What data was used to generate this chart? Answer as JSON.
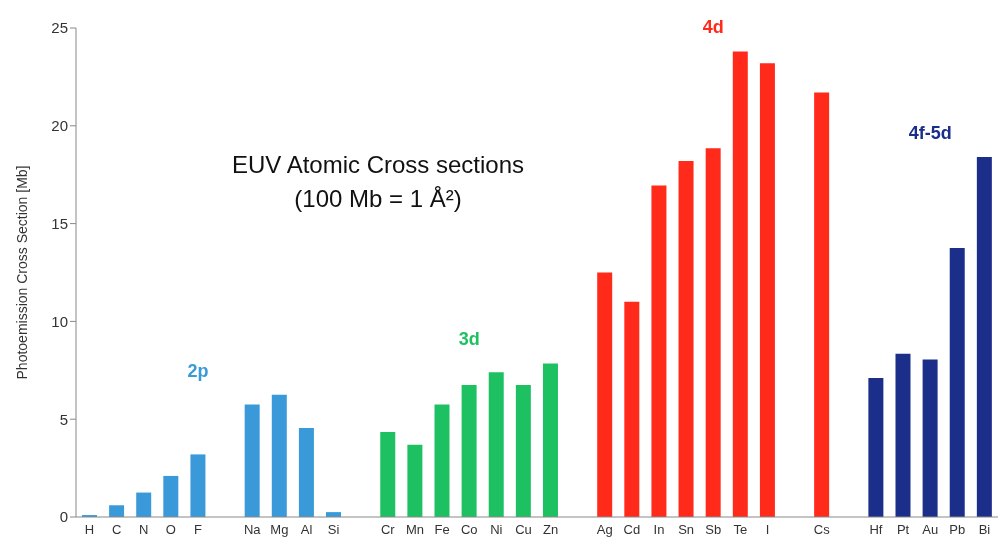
{
  "chart_data": {
    "type": "bar",
    "title": "EUV Atomic Cross sections",
    "subtitle": "(100 Mb = 1 Å²)",
    "ylabel": "Photoemission Cross  Section [Mb]",
    "categories": [
      "H",
      "C",
      "N",
      "O",
      "F",
      null,
      "Na",
      "Mg",
      "Al",
      "Si",
      null,
      "Cr",
      "Mn",
      "Fe",
      "Co",
      "Ni",
      "Cu",
      "Zn",
      null,
      "Ag",
      "Cd",
      "In",
      "Sn",
      "Sb",
      "Te",
      "I",
      null,
      "Cs",
      null,
      "Hf",
      "Pt",
      "Au",
      "Pb",
      "Bi"
    ],
    "stacked": true,
    "series": [
      {
        "name": "2p",
        "color": "#3a9ad9",
        "values": [
          0.1,
          0.6,
          1.25,
          2.1,
          3.2,
          null,
          5.75,
          6.25,
          4.55,
          0.25,
          null,
          null,
          null,
          null,
          null,
          null,
          null,
          null,
          null,
          null,
          null,
          null,
          null,
          null,
          null,
          null,
          null,
          null,
          null,
          null,
          null,
          null,
          null,
          null
        ]
      },
      {
        "name": "3d",
        "color": "#1ec162",
        "values": [
          null,
          null,
          null,
          null,
          null,
          null,
          null,
          null,
          null,
          null,
          null,
          4.35,
          3.7,
          5.75,
          6.75,
          7.4,
          6.75,
          7.85,
          null,
          null,
          null,
          null,
          null,
          null,
          null,
          null,
          null,
          null,
          null,
          null,
          null,
          null,
          null,
          null
        ]
      },
      {
        "name": "4d",
        "color": "#ff2a1a",
        "values": [
          null,
          null,
          null,
          null,
          null,
          null,
          null,
          null,
          null,
          null,
          null,
          null,
          null,
          null,
          null,
          null,
          null,
          null,
          null,
          12.5,
          11.0,
          16.95,
          18.2,
          18.85,
          23.8,
          23.2,
          null,
          21.7,
          null,
          null,
          null,
          null,
          null,
          null
        ]
      },
      {
        "name": "4f-5d",
        "color": "#1a2e8a",
        "values": [
          null,
          null,
          null,
          null,
          null,
          null,
          null,
          null,
          null,
          null,
          null,
          null,
          null,
          null,
          null,
          null,
          null,
          null,
          null,
          null,
          null,
          null,
          null,
          null,
          null,
          null,
          null,
          null,
          null,
          7.1,
          8.35,
          8.05,
          13.75,
          18.4
        ]
      }
    ],
    "ylim": [
      0,
      25
    ],
    "yticks": [
      0,
      5,
      10,
      15,
      20,
      25
    ],
    "grid": false,
    "legend": false
  }
}
